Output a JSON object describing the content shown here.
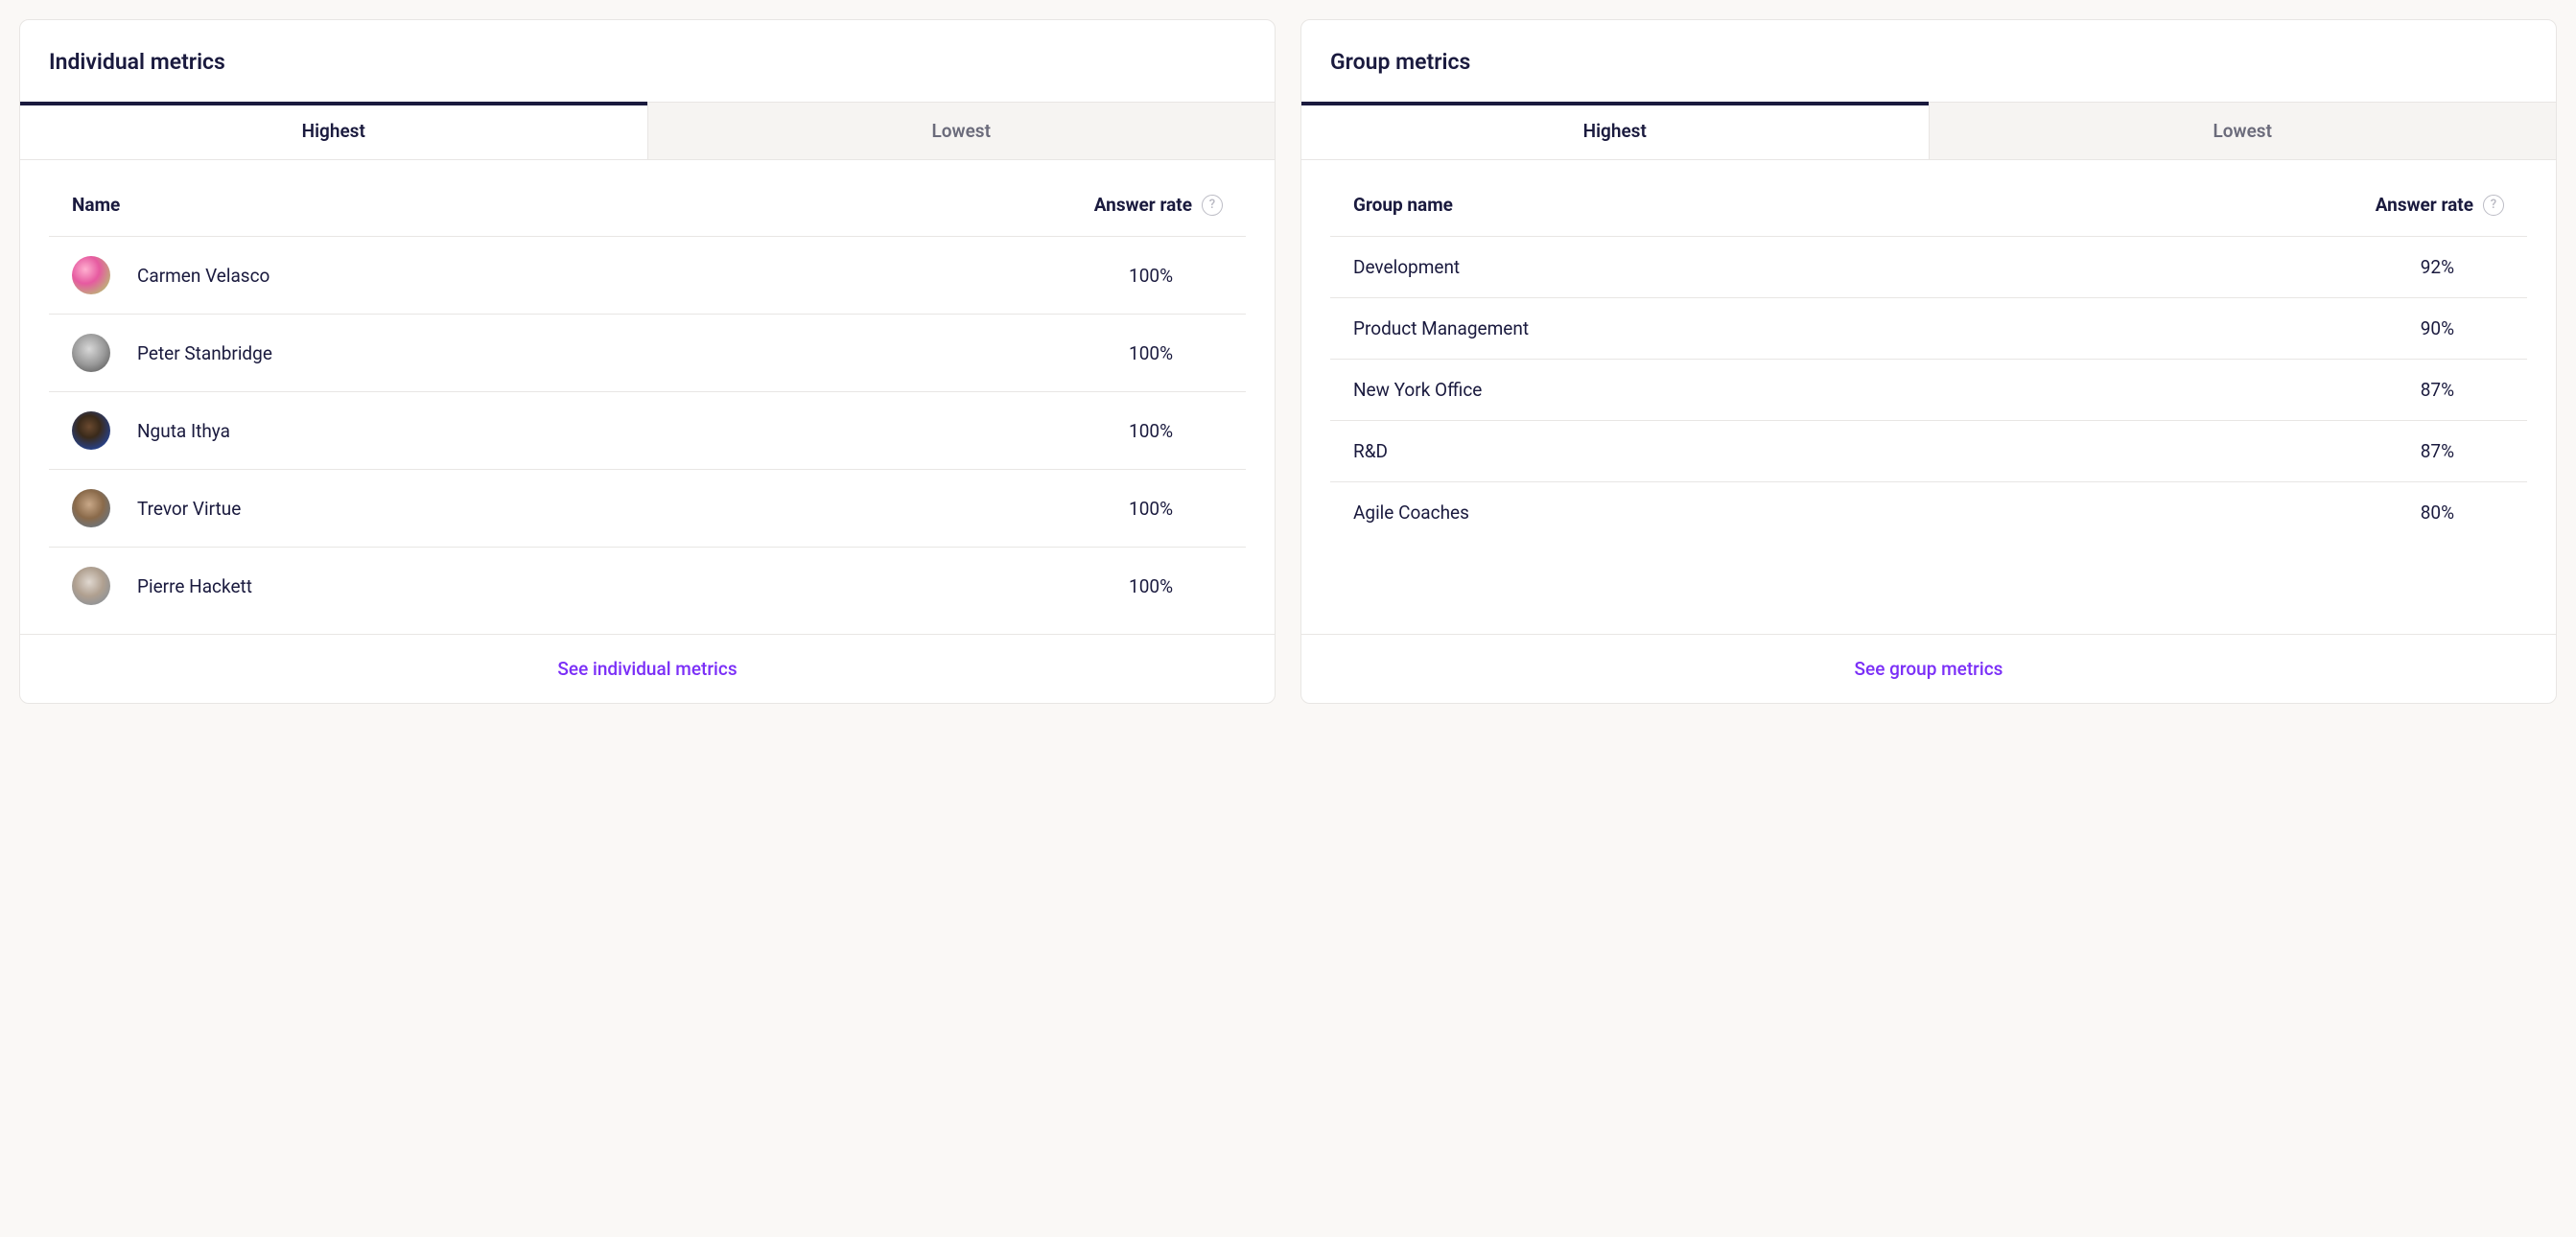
{
  "colors": {
    "background": "#faf8f6",
    "card_bg": "#ffffff",
    "border": "#e8e6e4",
    "text_primary": "#1a1a3e",
    "text_secondary": "#6b6b7b",
    "tab_inactive_bg": "#f6f4f2",
    "accent_bar": "#1a1a3e",
    "link": "#7b2ff7",
    "help_icon": "#bcbcc5"
  },
  "individual": {
    "title": "Individual metrics",
    "tabs": {
      "highest": "Highest",
      "lowest": "Lowest",
      "active": "highest"
    },
    "columns": {
      "name": "Name",
      "rate": "Answer rate"
    },
    "rows": [
      {
        "name": "Carmen Velasco",
        "rate": "100%",
        "avatar_bg": "radial-gradient(circle at 35% 35%, #ffb0d0 0%, #e65aa0 40%, #a8e063 100%)"
      },
      {
        "name": "Peter Stanbridge",
        "rate": "100%",
        "avatar_bg": "radial-gradient(circle at 45% 40%, #d8d8d8 0%, #9a9a9a 50%, #4a4a4a 100%)"
      },
      {
        "name": "Nguta Ithya",
        "rate": "100%",
        "avatar_bg": "radial-gradient(circle at 45% 40%, #6b4a30 0%, #3a2a1a 35%, #1a4fce 100%)"
      },
      {
        "name": "Trevor Virtue",
        "rate": "100%",
        "avatar_bg": "radial-gradient(circle at 45% 40%, #c9a888 0%, #8a6a4a 45%, #5a7a9a 100%)"
      },
      {
        "name": "Pierre Hackett",
        "rate": "100%",
        "avatar_bg": "radial-gradient(circle at 45% 40%, #e0d8d0 0%, #b0a090 45%, #7a8a9a 100%)"
      }
    ],
    "footer_link": "See individual metrics"
  },
  "group": {
    "title": "Group metrics",
    "tabs": {
      "highest": "Highest",
      "lowest": "Lowest",
      "active": "highest"
    },
    "columns": {
      "name": "Group name",
      "rate": "Answer rate"
    },
    "rows": [
      {
        "name": "Development",
        "rate": "92%"
      },
      {
        "name": "Product Management",
        "rate": "90%"
      },
      {
        "name": "New York Office",
        "rate": "87%"
      },
      {
        "name": "R&D",
        "rate": "87%"
      },
      {
        "name": "Agile Coaches",
        "rate": "80%"
      }
    ],
    "footer_link": "See group metrics"
  }
}
